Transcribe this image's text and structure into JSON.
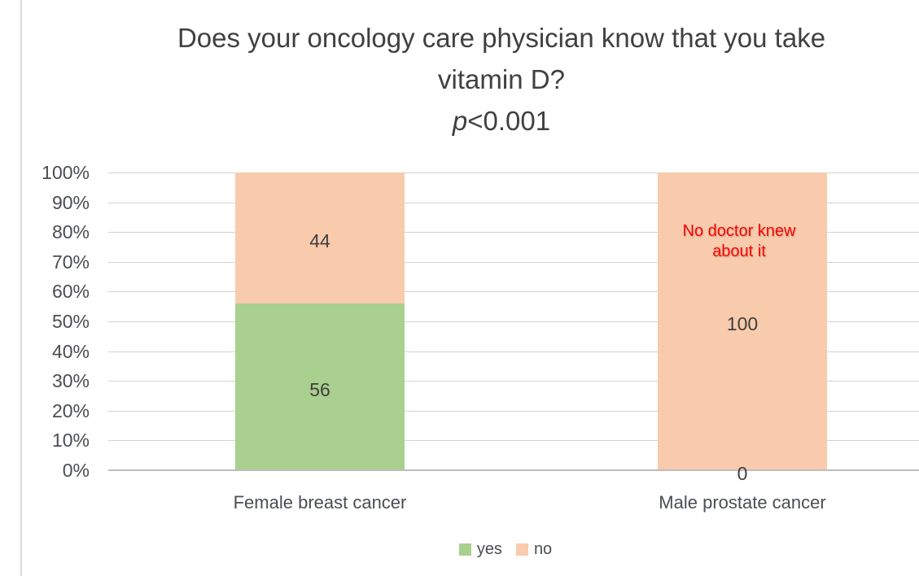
{
  "chart_data": {
    "type": "bar",
    "stacked": true,
    "orientation": "vertical",
    "title_lines": [
      "Does your oncology care physician know that you take",
      "vitamin D?"
    ],
    "stat_note": {
      "symbol": "p",
      "comparison": "<0.001"
    },
    "categories": [
      "Female breast cancer",
      "Male prostate cancer"
    ],
    "series": [
      {
        "name": "yes",
        "color": "#a9d08e",
        "values": [
          56,
          0
        ]
      },
      {
        "name": "no",
        "color": "#f8cbad",
        "values": [
          44,
          100
        ]
      }
    ],
    "data_labels": [
      "56",
      "44",
      "0",
      "100"
    ],
    "annotation": {
      "lines": [
        "No doctor knew",
        "about it"
      ],
      "color": "#ff0000",
      "category_index": 1
    },
    "y_axis": {
      "min": 0,
      "max": 100,
      "tick_step": 10,
      "ticks": [
        "0%",
        "10%",
        "20%",
        "30%",
        "40%",
        "50%",
        "60%",
        "70%",
        "80%",
        "90%",
        "100%"
      ]
    },
    "legend": {
      "position": "bottom",
      "entries": [
        "yes",
        "no"
      ]
    },
    "grid": true,
    "colors": {
      "gridline": "#d3d3d3",
      "axis_line": "#bdbdbd",
      "title_text": "#404040",
      "tick_text": "#4a4d52",
      "data_label_text": "#3f3f3f"
    }
  }
}
